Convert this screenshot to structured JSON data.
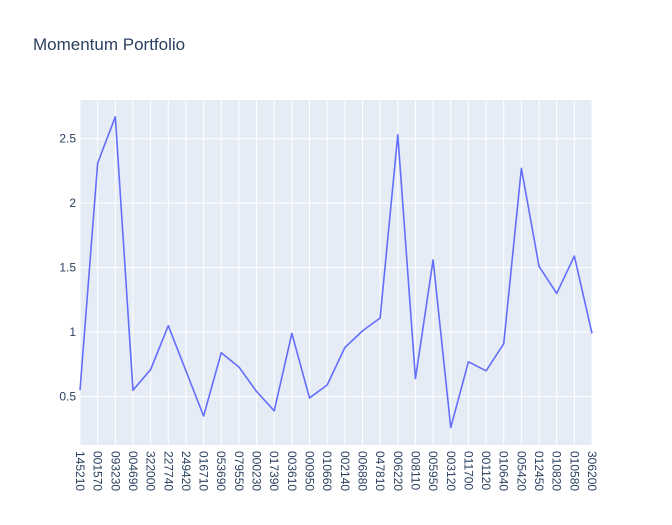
{
  "chart_data": {
    "type": "line",
    "title": "Momentum Portfolio",
    "xlabel": "",
    "ylabel": "",
    "grid": true,
    "legend": "none",
    "ylim": [
      0.125,
      2.8
    ],
    "yticks": [
      0.5,
      1,
      1.5,
      2,
      2.5
    ],
    "ytick_labels": [
      "0.5",
      "1",
      "1.5",
      "2",
      "2.5"
    ],
    "categories": [
      "145210",
      "001570",
      "093230",
      "004690",
      "322000",
      "227740",
      "249420",
      "016710",
      "053690",
      "079550",
      "000230",
      "017390",
      "003610",
      "000950",
      "010660",
      "002140",
      "006880",
      "047810",
      "006220",
      "008110",
      "005950",
      "003120",
      "011700",
      "001120",
      "010640",
      "005420",
      "012450",
      "010820",
      "010580",
      "306200"
    ],
    "series": [
      {
        "values": [
          0.55,
          2.31,
          2.67,
          0.55,
          0.71,
          1.05,
          0.7,
          0.35,
          0.84,
          0.73,
          0.54,
          0.39,
          0.99,
          0.49,
          0.59,
          0.88,
          1.01,
          1.11,
          2.53,
          0.64,
          1.56,
          0.26,
          0.77,
          0.7,
          0.91,
          2.27,
          1.51,
          1.3,
          1.59,
          0.99
        ],
        "color": "#636efa"
      }
    ],
    "colors": {
      "plot_bg": "#e5ecf6",
      "grid": "#ffffff",
      "text": "#2a3f5f",
      "line": "#636efa"
    }
  }
}
